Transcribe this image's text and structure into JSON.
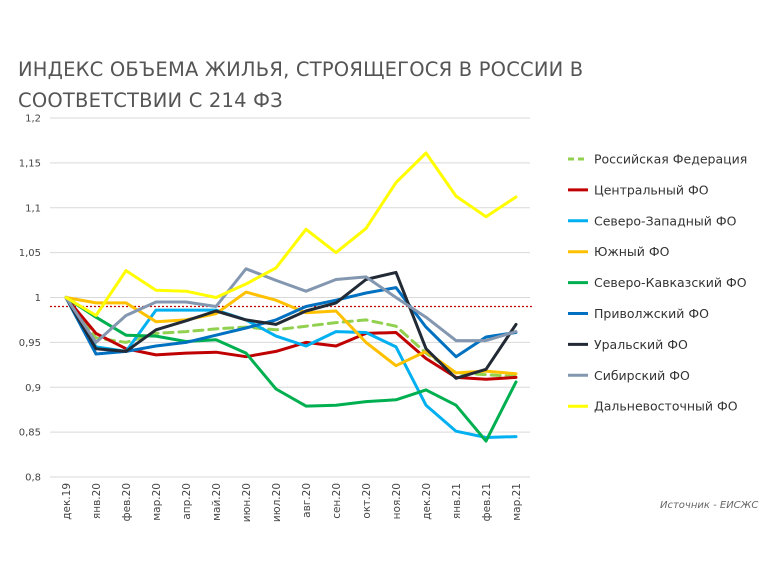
{
  "title": "ИНДЕКС ОБЪЕМА ЖИЛЬЯ, СТРОЯЩЕГОСЯ В РОССИИ В СООТВЕТСТВИИ С 214 ФЗ",
  "source": "Источник - ЕИСЖС",
  "chart_data": {
    "type": "line",
    "title": "ИНДЕКС ОБЪЕМА ЖИЛЬЯ, СТРОЯЩЕГОСЯ В РОССИИ В СООТВЕТСТВИИ С 214 ФЗ",
    "xlabel": "",
    "ylabel": "",
    "ylim": [
      0.8,
      1.2
    ],
    "yticks": [
      "0,8",
      "0,85",
      "0,9",
      "0,95",
      "1",
      "1,05",
      "1,1",
      "1,15",
      "1,2"
    ],
    "reference_line": 0.99,
    "grid": "horizontal",
    "legend_position": "right",
    "x": [
      "дек.19",
      "янв.20",
      "фев.20",
      "мар.20",
      "апр.20",
      "май.20",
      "июн.20",
      "июл.20",
      "авг.20",
      "сен.20",
      "окт.20",
      "ноя.20",
      "дек.20",
      "янв.21",
      "фев.21",
      "мар.21"
    ],
    "series": [
      {
        "name": "Российская Федерация",
        "color": "#92d050",
        "dashed": true,
        "values": [
          1.0,
          0.955,
          0.95,
          0.96,
          0.962,
          0.965,
          0.967,
          0.964,
          0.968,
          0.972,
          0.975,
          0.968,
          0.938,
          0.916,
          0.914,
          0.912
        ]
      },
      {
        "name": "Центральный ФО",
        "color": "#c00000",
        "dashed": false,
        "values": [
          1.0,
          0.96,
          0.943,
          0.936,
          0.938,
          0.939,
          0.934,
          0.94,
          0.95,
          0.946,
          0.96,
          0.961,
          0.932,
          0.911,
          0.909,
          0.911
        ]
      },
      {
        "name": "Северо-Западный ФО",
        "color": "#00b0f0",
        "dashed": false,
        "values": [
          1.0,
          0.945,
          0.94,
          0.986,
          0.986,
          0.986,
          0.975,
          0.957,
          0.946,
          0.962,
          0.961,
          0.945,
          0.88,
          0.851,
          0.844,
          0.845
        ]
      },
      {
        "name": "Южный ФО",
        "color": "#ffc000",
        "dashed": false,
        "values": [
          1.0,
          0.994,
          0.994,
          0.973,
          0.975,
          0.982,
          1.006,
          0.997,
          0.983,
          0.985,
          0.95,
          0.924,
          0.94,
          0.916,
          0.918,
          0.915
        ]
      },
      {
        "name": "Северо-Кавказский  ФО",
        "color": "#00b050",
        "dashed": false,
        "values": [
          1.0,
          0.978,
          0.958,
          0.957,
          0.951,
          0.953,
          0.938,
          0.898,
          0.879,
          0.88,
          0.884,
          0.886,
          0.897,
          0.88,
          0.84,
          0.906
        ]
      },
      {
        "name": "Приволжский ФО",
        "color": "#0070c0",
        "dashed": false,
        "values": [
          1.0,
          0.937,
          0.94,
          0.946,
          0.95,
          0.958,
          0.966,
          0.975,
          0.99,
          0.997,
          1.005,
          1.011,
          0.967,
          0.934,
          0.956,
          0.961
        ]
      },
      {
        "name": "Уральский ФО",
        "color": "#222a35",
        "dashed": false,
        "values": [
          1.0,
          0.943,
          0.94,
          0.964,
          0.974,
          0.985,
          0.975,
          0.97,
          0.985,
          0.994,
          1.02,
          1.028,
          0.943,
          0.91,
          0.92,
          0.97
        ]
      },
      {
        "name": "Сибирский ФО",
        "color": "#8497b0",
        "dashed": false,
        "values": [
          1.0,
          0.95,
          0.98,
          0.995,
          0.995,
          0.99,
          1.032,
          1.019,
          1.007,
          1.02,
          1.023,
          1.0,
          0.978,
          0.952,
          0.952,
          0.962
        ]
      },
      {
        "name": "Дальневосточный ФО",
        "color": "#ffff00",
        "dashed": false,
        "values": [
          1.0,
          0.98,
          1.03,
          1.008,
          1.007,
          1.0,
          1.015,
          1.033,
          1.076,
          1.05,
          1.077,
          1.128,
          1.161,
          1.113,
          1.09,
          1.112
        ]
      }
    ]
  }
}
